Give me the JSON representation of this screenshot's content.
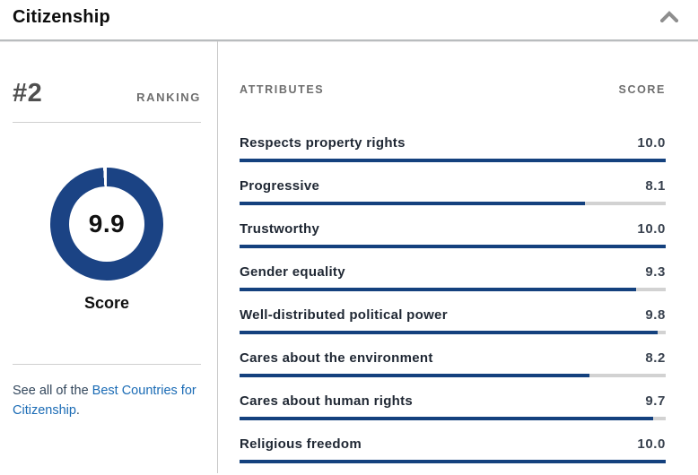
{
  "panel": {
    "title": "Citizenship",
    "collapse_icon": "chevron-up-icon"
  },
  "ranking": {
    "rank": "#2",
    "label": "RANKING"
  },
  "score_donut": {
    "value": "9.9",
    "caption": "Score",
    "max": 10,
    "fill_deg": 356.4
  },
  "see_all": {
    "prefix": "See all of the ",
    "link_text": "Best Countries for Citizenship",
    "suffix": "."
  },
  "attributes_table": {
    "col_attribute": "ATTRIBUTES",
    "col_score": "SCORE",
    "rows": [
      {
        "label": "Respects property rights",
        "score": "10.0",
        "pct": 100
      },
      {
        "label": "Progressive",
        "score": "8.1",
        "pct": 81
      },
      {
        "label": "Trustworthy",
        "score": "10.0",
        "pct": 100
      },
      {
        "label": "Gender equality",
        "score": "9.3",
        "pct": 93
      },
      {
        "label": "Well-distributed political power",
        "score": "9.8",
        "pct": 98
      },
      {
        "label": "Cares about the environment",
        "score": "8.2",
        "pct": 82
      },
      {
        "label": "Cares about human rights",
        "score": "9.7",
        "pct": 97
      },
      {
        "label": "Religious freedom",
        "score": "10.0",
        "pct": 100
      }
    ]
  },
  "colors": {
    "donut_navy": "#1b4384",
    "bar_navy": "#14417e",
    "bar_track": "#d2d2d2",
    "link_blue": "#1a6bb5",
    "muted_gray": "#6e6e6e"
  },
  "chart_data": [
    {
      "type": "pie",
      "subtype": "donut",
      "title": "Score",
      "labels": [
        "score",
        "remainder"
      ],
      "values": [
        9.9,
        0.1
      ],
      "range": [
        0,
        10
      ],
      "center_text": "9.9",
      "start_angle": "top",
      "direction": "clockwise"
    },
    {
      "type": "bar",
      "orientation": "horizontal",
      "title": "ATTRIBUTES",
      "value_column": "SCORE",
      "categories": [
        "Respects property rights",
        "Progressive",
        "Trustworthy",
        "Gender equality",
        "Well-distributed political power",
        "Cares about the environment",
        "Cares about human rights",
        "Religious freedom"
      ],
      "values": [
        10.0,
        8.1,
        10.0,
        9.3,
        9.8,
        8.2,
        9.7,
        10.0
      ],
      "xlim": [
        0,
        10
      ],
      "grid": false,
      "legend": false
    }
  ]
}
